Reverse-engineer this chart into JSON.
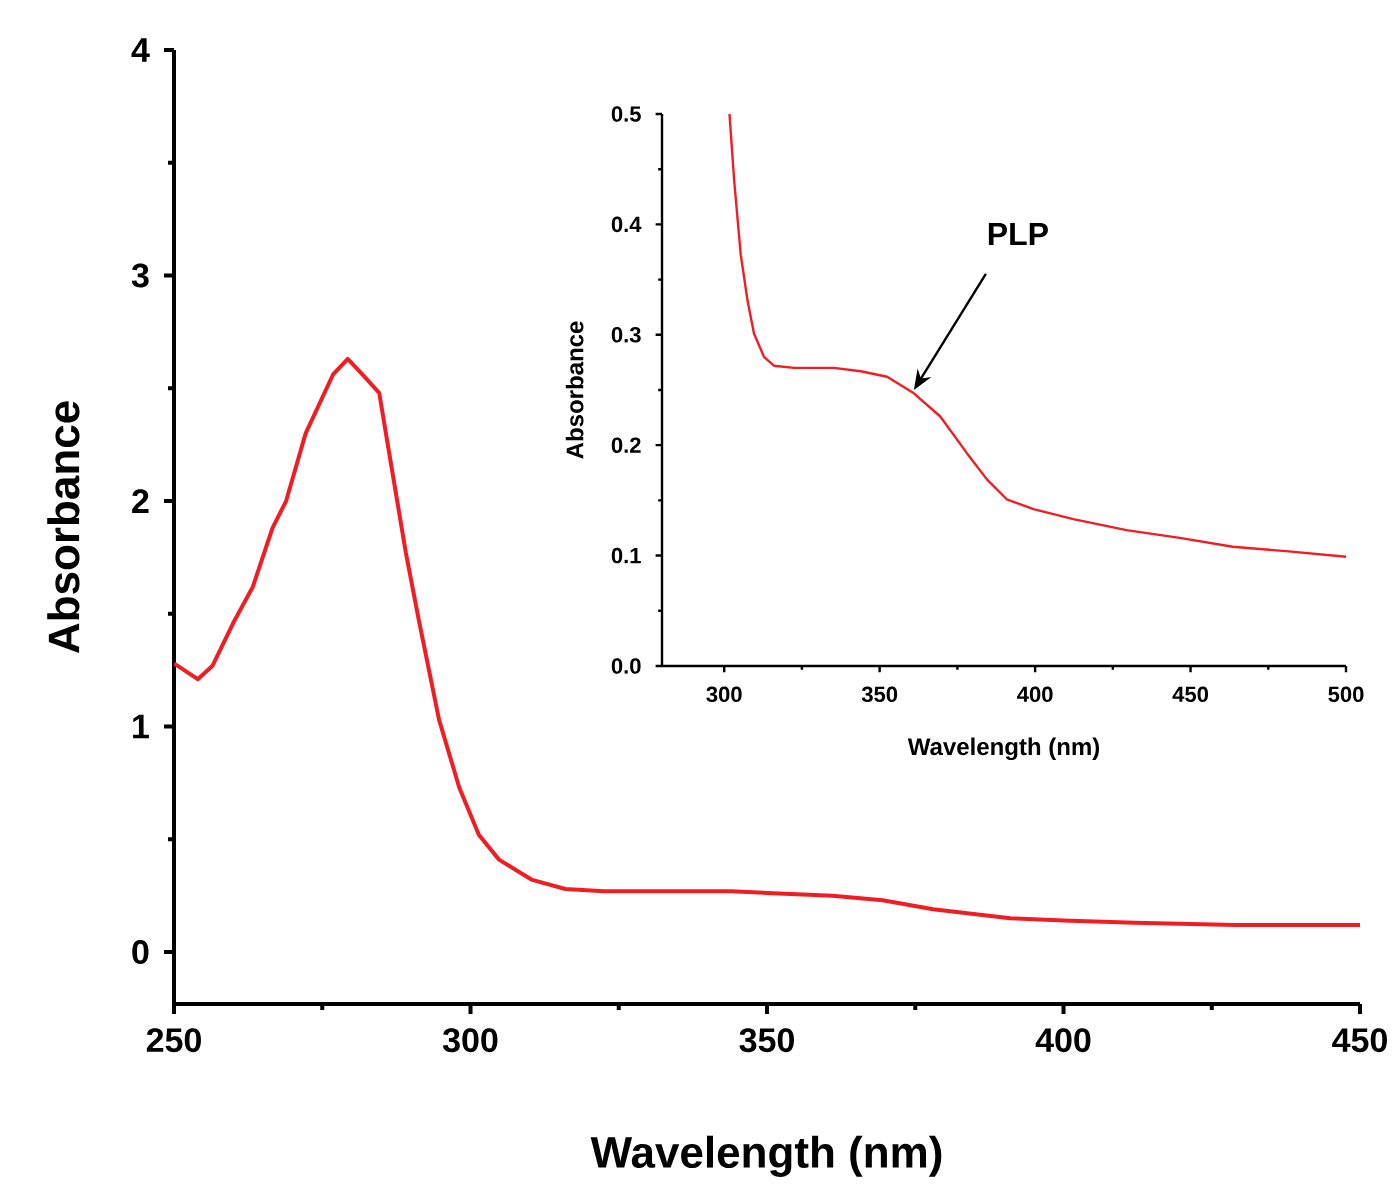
{
  "chart_data": [
    {
      "type": "line",
      "xlabel": "Wavelength (nm)",
      "ylabel": "Absorbance",
      "xlim": [
        250,
        450
      ],
      "ylim": [
        -0.23,
        4
      ],
      "xticks": [
        250,
        300,
        350,
        400,
        450
      ],
      "yticks": [
        0,
        1,
        2,
        3,
        4
      ],
      "series": [
        {
          "color": "#f01e23",
          "x": [
            250,
            254,
            256.5,
            260,
            263.3,
            266.6,
            268.9,
            272.2,
            276.8,
            279.3,
            281.8,
            284.6,
            286.3,
            289.1,
            291.3,
            294.7,
            298.1,
            301.4,
            304.8,
            310.4,
            316,
            322.5,
            335,
            344,
            352,
            361,
            369.5,
            378,
            384.5,
            391,
            400,
            412,
            429,
            447,
            450
          ],
          "values": [
            1.28,
            1.21,
            1.27,
            1.46,
            1.62,
            1.88,
            2.0,
            2.3,
            2.56,
            2.63,
            2.56,
            2.48,
            2.21,
            1.77,
            1.47,
            1.03,
            0.73,
            0.52,
            0.41,
            0.32,
            0.28,
            0.27,
            0.27,
            0.27,
            0.26,
            0.25,
            0.23,
            0.19,
            0.17,
            0.15,
            0.14,
            0.13,
            0.12,
            0.12,
            0.12
          ]
        }
      ]
    },
    {
      "type": "line",
      "xlabel": "Wavelength (nm)",
      "ylabel": "Absorbance",
      "xlim": [
        280,
        500
      ],
      "ylim": [
        0,
        0.5
      ],
      "xticks": [
        300,
        350,
        400,
        450,
        500
      ],
      "yticks": [
        {
          "value": 0,
          "label": "0.0"
        },
        0.1,
        0.2,
        0.3,
        0.4,
        0.5
      ],
      "annotations": [
        {
          "text": "PLP",
          "x": 361,
          "y": 0.25
        }
      ],
      "series": [
        {
          "color": "#f01e23",
          "x": [
            301.7,
            303.2,
            305.3,
            307.5,
            309.6,
            312.8,
            316,
            322.5,
            335.3,
            343.9,
            352.4,
            361,
            369.5,
            378,
            384.5,
            390.9,
            399.5,
            412.3,
            429.4,
            446.5,
            463.6,
            480.7,
            500
          ],
          "values": [
            0.5,
            0.44,
            0.373,
            0.331,
            0.301,
            0.28,
            0.272,
            0.27,
            0.27,
            0.267,
            0.262,
            0.247,
            0.226,
            0.193,
            0.169,
            0.151,
            0.142,
            0.133,
            0.123,
            0.116,
            0.108,
            0.104,
            0.099
          ]
        }
      ]
    }
  ]
}
